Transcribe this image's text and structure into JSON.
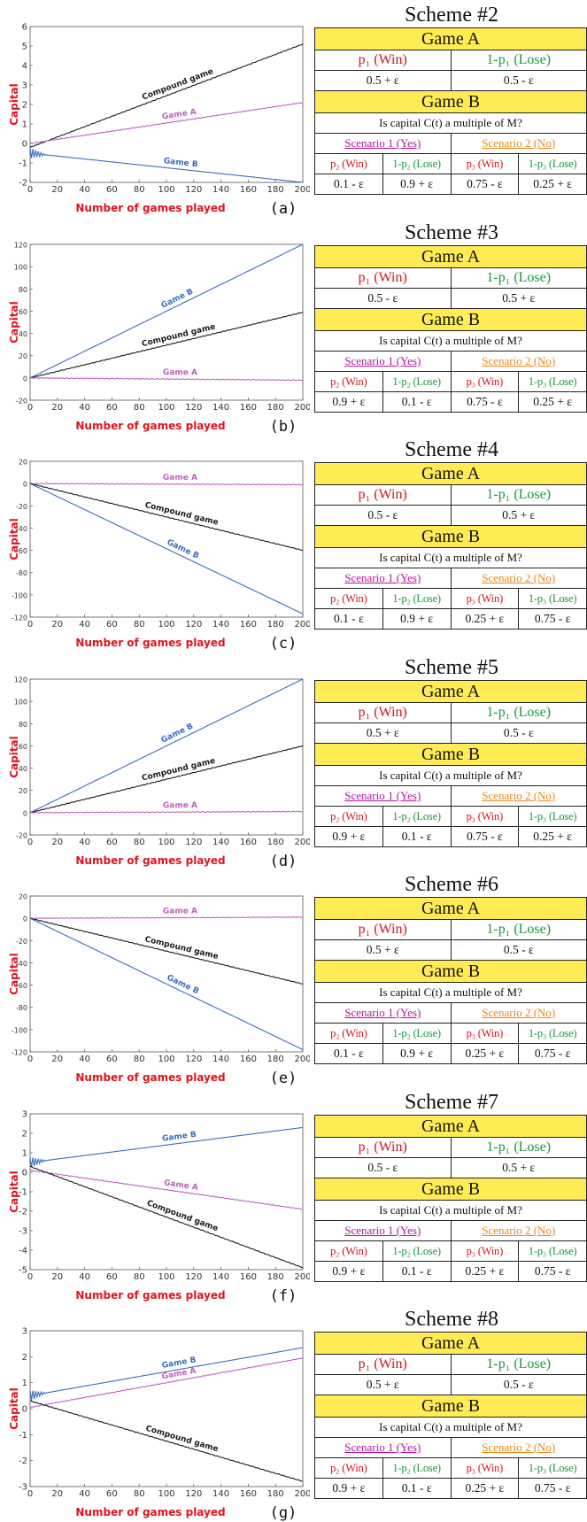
{
  "common": {
    "xlabel": "Number of games played",
    "ylabel": "Capital",
    "game_a_header": "Game A",
    "game_b_header": "Game B",
    "p1_win": "p₁ (Win)",
    "p1_lose": "1-p₁ (Lose)",
    "question": "Is capital C(t) a multiple of M?",
    "scenario1": "Scenario 1 (Yes)",
    "scenario2": "Scenario 2 (No)",
    "p2_win": "p₂ (Win)",
    "p2_lose": "1-p₂ (Lose)",
    "p3_win": "p₃ (Win)",
    "p3_lose": "1-p₃ (Lose)",
    "colors": {
      "compound": "#1a1a1a",
      "game_a": "#c060c0",
      "game_b": "#3a6cc0",
      "axis_label": "#e0141e"
    }
  },
  "panels": [
    {
      "letter": "(a)",
      "scheme": "Scheme #2",
      "a_win": "0.5 + ε",
      "a_lose": "0.5 - ε",
      "s1_win": "0.1 - ε",
      "s1_lose": "0.9 + ε",
      "s2_win": "0.75 - ε",
      "s2_lose": "0.25 + ε"
    },
    {
      "letter": "(b)",
      "scheme": "Scheme #3",
      "a_win": "0.5 - ε",
      "a_lose": "0.5 + ε",
      "s1_win": "0.9 + ε",
      "s1_lose": "0.1 - ε",
      "s2_win": "0.75 - ε",
      "s2_lose": "0.25 + ε"
    },
    {
      "letter": "(c)",
      "scheme": "Scheme #4",
      "a_win": "0.5 - ε",
      "a_lose": "0.5 + ε",
      "s1_win": "0.1 - ε",
      "s1_lose": "0.9 + ε",
      "s2_win": "0.25 + ε",
      "s2_lose": "0.75 - ε"
    },
    {
      "letter": "(d)",
      "scheme": "Scheme #5",
      "a_win": "0.5 + ε",
      "a_lose": "0.5 - ε",
      "s1_win": "0.9 + ε",
      "s1_lose": "0.1 - ε",
      "s2_win": "0.75 - ε",
      "s2_lose": "0.25 + ε"
    },
    {
      "letter": "(e)",
      "scheme": "Scheme #6",
      "a_win": "0.5 + ε",
      "a_lose": "0.5 - ε",
      "s1_win": "0.1 - ε",
      "s1_lose": "0.9 + ε",
      "s2_win": "0.25 + ε",
      "s2_lose": "0.75 - ε"
    },
    {
      "letter": "(f)",
      "scheme": "Scheme #7",
      "a_win": "0.5 - ε",
      "a_lose": "0.5 + ε",
      "s1_win": "0.9 + ε",
      "s1_lose": "0.1 - ε",
      "s2_win": "0.25 + ε",
      "s2_lose": "0.75 - ε"
    },
    {
      "letter": "(g)",
      "scheme": "Scheme #8",
      "a_win": "0.5 + ε",
      "a_lose": "0.5 - ε",
      "s1_win": "0.9 + ε",
      "s1_lose": "0.1 - ε",
      "s2_win": "0.25 + ε",
      "s2_lose": "0.75 - ε"
    }
  ],
  "chart_data": [
    {
      "type": "line",
      "xlabel": "Number of games played",
      "ylabel": "Capital",
      "xlim": [
        0,
        200
      ],
      "ylim": [
        -2,
        6
      ],
      "xticks": [
        0,
        20,
        40,
        60,
        80,
        100,
        120,
        140,
        160,
        180,
        200
      ],
      "yticks": [
        -2,
        -1,
        0,
        1,
        2,
        3,
        4,
        5,
        6
      ],
      "series": [
        {
          "name": "Compound game",
          "x": [
            0,
            200
          ],
          "y": [
            -0.2,
            5.1
          ]
        },
        {
          "name": "Game A",
          "x": [
            0,
            200
          ],
          "y": [
            0.0,
            2.1
          ]
        },
        {
          "name": "Game B",
          "x": [
            0,
            200
          ],
          "y": [
            -0.5,
            -2.0
          ],
          "oscillation": true
        }
      ]
    },
    {
      "type": "line",
      "xlabel": "Number of games played",
      "ylabel": "Capital",
      "xlim": [
        0,
        200
      ],
      "ylim": [
        -20,
        120
      ],
      "xticks": [
        0,
        20,
        40,
        60,
        80,
        100,
        120,
        140,
        160,
        180,
        200
      ],
      "yticks": [
        -20,
        0,
        20,
        40,
        60,
        80,
        100,
        120
      ],
      "series": [
        {
          "name": "Game B",
          "x": [
            0,
            200
          ],
          "y": [
            0,
            120
          ]
        },
        {
          "name": "Compound game",
          "x": [
            0,
            200
          ],
          "y": [
            0,
            59
          ]
        },
        {
          "name": "Game A",
          "x": [
            0,
            200
          ],
          "y": [
            0,
            -2
          ]
        }
      ]
    },
    {
      "type": "line",
      "xlabel": "Number of games played",
      "ylabel": "Capital",
      "xlim": [
        0,
        200
      ],
      "ylim": [
        -120,
        20
      ],
      "xticks": [
        0,
        20,
        40,
        60,
        80,
        100,
        120,
        140,
        160,
        180,
        200
      ],
      "yticks": [
        -120,
        -100,
        -80,
        -60,
        -40,
        -20,
        0,
        20
      ],
      "series": [
        {
          "name": "Game A",
          "x": [
            0,
            200
          ],
          "y": [
            0,
            -1
          ]
        },
        {
          "name": "Compound game",
          "x": [
            0,
            200
          ],
          "y": [
            0,
            -60
          ]
        },
        {
          "name": "Game B",
          "x": [
            0,
            200
          ],
          "y": [
            0,
            -117
          ]
        }
      ]
    },
    {
      "type": "line",
      "xlabel": "Number of games played",
      "ylabel": "Capital",
      "xlim": [
        0,
        200
      ],
      "ylim": [
        -20,
        120
      ],
      "xticks": [
        0,
        20,
        40,
        60,
        80,
        100,
        120,
        140,
        160,
        180,
        200
      ],
      "yticks": [
        -20,
        0,
        20,
        40,
        60,
        80,
        100,
        120
      ],
      "series": [
        {
          "name": "Game B",
          "x": [
            0,
            200
          ],
          "y": [
            0,
            120
          ]
        },
        {
          "name": "Compound game",
          "x": [
            0,
            200
          ],
          "y": [
            0,
            60
          ]
        },
        {
          "name": "Game A",
          "x": [
            0,
            200
          ],
          "y": [
            0,
            1
          ]
        }
      ]
    },
    {
      "type": "line",
      "xlabel": "Number of games played",
      "ylabel": "Capital",
      "xlim": [
        0,
        200
      ],
      "ylim": [
        -120,
        20
      ],
      "xticks": [
        0,
        20,
        40,
        60,
        80,
        100,
        120,
        140,
        160,
        180,
        200
      ],
      "yticks": [
        -120,
        -100,
        -80,
        -60,
        -40,
        -20,
        0,
        20
      ],
      "series": [
        {
          "name": "Game A",
          "x": [
            0,
            200
          ],
          "y": [
            0,
            1
          ]
        },
        {
          "name": "Compound game",
          "x": [
            0,
            200
          ],
          "y": [
            0,
            -59
          ]
        },
        {
          "name": "Game B",
          "x": [
            0,
            200
          ],
          "y": [
            0,
            -118
          ]
        }
      ]
    },
    {
      "type": "line",
      "xlabel": "Number of games played",
      "ylabel": "Capital",
      "xlim": [
        0,
        200
      ],
      "ylim": [
        -5,
        3
      ],
      "xticks": [
        0,
        20,
        40,
        60,
        80,
        100,
        120,
        140,
        160,
        180,
        200
      ],
      "yticks": [
        -5,
        -4,
        -3,
        -2,
        -1,
        0,
        1,
        2,
        3
      ],
      "series": [
        {
          "name": "Game B",
          "x": [
            0,
            200
          ],
          "y": [
            0.5,
            2.3
          ],
          "oscillation": true
        },
        {
          "name": "Game A",
          "x": [
            0,
            200
          ],
          "y": [
            0.1,
            -1.9
          ]
        },
        {
          "name": "Compound game",
          "x": [
            0,
            200
          ],
          "y": [
            0.3,
            -4.9
          ]
        }
      ]
    },
    {
      "type": "line",
      "xlabel": "Number of games played",
      "ylabel": "Capital",
      "xlim": [
        0,
        200
      ],
      "ylim": [
        -3,
        3
      ],
      "xticks": [
        0,
        20,
        40,
        60,
        80,
        100,
        120,
        140,
        160,
        180,
        200
      ],
      "yticks": [
        -3,
        -2,
        -1,
        0,
        1,
        2,
        3
      ],
      "series": [
        {
          "name": "Game B",
          "x": [
            0,
            200
          ],
          "y": [
            0.5,
            2.35
          ],
          "oscillation": true
        },
        {
          "name": "Game A",
          "x": [
            0,
            200
          ],
          "y": [
            0.05,
            1.95
          ]
        },
        {
          "name": "Compound game",
          "x": [
            0,
            200
          ],
          "y": [
            0.3,
            -2.8
          ]
        }
      ]
    }
  ]
}
